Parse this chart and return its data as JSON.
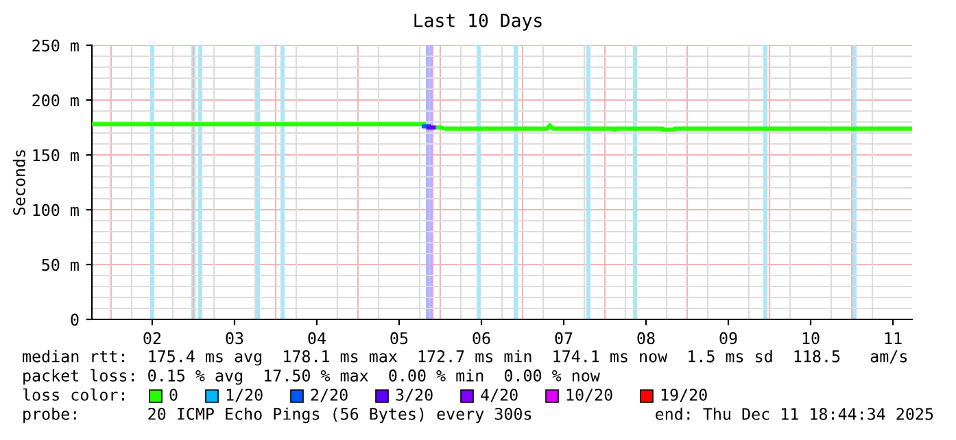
{
  "chart_data": {
    "type": "line",
    "title": "Last 10 Days",
    "ylabel": "Seconds",
    "legend_title": "loss color:",
    "xlim": [
      1.767,
      11.733
    ],
    "xticks": [
      {
        "value": 2,
        "label": null
      },
      {
        "value": 2.5,
        "label": "02"
      },
      {
        "value": 3,
        "label": null
      },
      {
        "value": 3.5,
        "label": "03"
      },
      {
        "value": 4,
        "label": null
      },
      {
        "value": 4.5,
        "label": "04"
      },
      {
        "value": 5,
        "label": null
      },
      {
        "value": 5.5,
        "label": "05"
      },
      {
        "value": 6,
        "label": null
      },
      {
        "value": 6.5,
        "label": "06"
      },
      {
        "value": 7,
        "label": null
      },
      {
        "value": 7.5,
        "label": "07"
      },
      {
        "value": 8,
        "label": null
      },
      {
        "value": 8.5,
        "label": "08"
      },
      {
        "value": 9,
        "label": null
      },
      {
        "value": 9.5,
        "label": "09"
      },
      {
        "value": 10,
        "label": null
      },
      {
        "value": 10.5,
        "label": "10"
      },
      {
        "value": 11,
        "label": null
      },
      {
        "value": 11.5,
        "label": "11"
      }
    ],
    "ylim": [
      0,
      250
    ],
    "yticks": [
      0,
      {
        "value": 50,
        "label": "50 m"
      },
      {
        "value": 100,
        "label": "100 m"
      },
      {
        "value": 150,
        "label": "150 m"
      },
      {
        "value": 200,
        "label": "200 m"
      },
      {
        "value": 250,
        "label": "250 m"
      }
    ],
    "grid": true,
    "legend": "bottom",
    "series": [
      {
        "name": "0",
        "color": "#26ff00",
        "x": [
          1.767,
          5.75,
          5.75,
          5.8,
          5.83,
          5.92,
          6.0,
          6.05,
          7.3,
          7.33,
          7.37,
          8.1,
          8.1,
          8.13,
          8.13,
          8.7,
          8.7,
          8.85,
          8.85,
          11.733
        ],
        "values": [
          178,
          178,
          178,
          178,
          null,
          175,
          175,
          174,
          174,
          177,
          174,
          174,
          173,
          173,
          174,
          174,
          173,
          173,
          174,
          174
        ]
      },
      {
        "name": "1/20",
        "color": "#00b8ff"
      },
      {
        "name": "2/20",
        "color": "#0059ff",
        "x": [
          5.8,
          5.86
        ],
        "values": [
          176,
          176
        ]
      },
      {
        "name": "3/20",
        "color": "#5e00ff",
        "x": [
          5.86,
          5.92
        ],
        "values": [
          175,
          175
        ]
      },
      {
        "name": "4/20",
        "color": "#7e00ff"
      },
      {
        "name": "10/20",
        "color": "#dd00ff"
      },
      {
        "name": "19/20",
        "color": "#ff0000"
      }
    ],
    "bands": [
      {
        "axis": "x",
        "from": 2.475,
        "to": 2.525,
        "color": "#a9e6f8"
      },
      {
        "axis": "x",
        "from": 2.975,
        "to": 3.025,
        "color": "#a9e6f8"
      },
      {
        "axis": "x",
        "from": 3.058,
        "to": 3.108,
        "color": "#a9e6f8"
      },
      {
        "axis": "x",
        "from": 3.758,
        "to": 3.808,
        "color": "#a9e6f8"
      },
      {
        "axis": "x",
        "from": 4.058,
        "to": 4.108,
        "color": "#a9e6f8"
      },
      {
        "axis": "x",
        "from": 5.825,
        "to": 5.87,
        "color": "#a8b8f8"
      },
      {
        "axis": "x",
        "from": 5.87,
        "to": 5.917,
        "color": "#cdaaf8"
      },
      {
        "axis": "x",
        "from": 6.442,
        "to": 6.492,
        "color": "#a9e6f8"
      },
      {
        "axis": "x",
        "from": 6.892,
        "to": 6.942,
        "color": "#a9e6f8"
      },
      {
        "axis": "x",
        "from": 7.775,
        "to": 7.825,
        "color": "#a9e6f8"
      },
      {
        "axis": "x",
        "from": 8.342,
        "to": 8.392,
        "color": "#a9e6f8"
      },
      {
        "axis": "x",
        "from": 9.925,
        "to": 9.975,
        "color": "#a9e6f8"
      },
      {
        "axis": "x",
        "from": 11.008,
        "to": 11.058,
        "color": "#a9e6f8"
      }
    ],
    "annotations": [
      "median rtt:  175.4 ms avg  178.1 ms max  172.7 ms min  174.1 ms now  1.5 ms sd  118.5   am/s",
      "packet loss: 0.15 % avg  17.50 % max  0.00 % min  0.00 % now",
      "probe:       20 ICMP Echo Pings (56 Bytes) every 300s",
      "end: Thu Dec 11 18:44:34 2025"
    ]
  }
}
